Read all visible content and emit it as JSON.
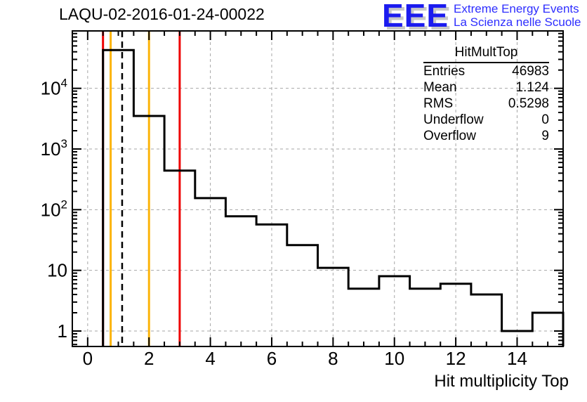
{
  "title": "LAQU-02-2016-01-24-00022",
  "logo": {
    "acronym": "EEE",
    "line1": "Extreme Energy Events",
    "line2": "La Scienza nelle Scuole",
    "color": "#1b1bef",
    "text_color": "#2e2eff",
    "shadow_color": "#c8c8c8"
  },
  "stats_box": {
    "header": "HitMultTop",
    "rows": [
      {
        "label": "Entries",
        "value": "46983"
      },
      {
        "label": "Mean",
        "value": "1.124"
      },
      {
        "label": "RMS",
        "value": "0.5298"
      },
      {
        "label": "Underflow",
        "value": "0"
      },
      {
        "label": "Overflow",
        "value": "9"
      }
    ]
  },
  "chart_data": {
    "type": "bar",
    "subtype": "step-histogram",
    "title": "LAQU-02-2016-01-24-00022",
    "xlabel": "Hit multiplicity Top",
    "ylabel": "",
    "x_range": [
      -0.5,
      15.5
    ],
    "y_range": [
      0.55,
      88000
    ],
    "y_scale": "log",
    "grid": true,
    "bin_width": 1,
    "bin_centers": [
      1,
      2,
      3,
      4,
      5,
      6,
      7,
      8,
      9,
      10,
      11,
      12,
      13,
      14,
      15
    ],
    "values": [
      42676,
      3500,
      440,
      155,
      78,
      57,
      26,
      11,
      5,
      8,
      5,
      6,
      4,
      1,
      2
    ],
    "underflow": 0,
    "overflow": 9,
    "x_ticks": [
      0,
      2,
      4,
      6,
      8,
      10,
      12,
      14
    ],
    "x_minor_step": 0.5,
    "y_ticks": [
      1,
      10,
      100,
      1000,
      10000
    ],
    "hist_color": "#000000",
    "grid_color": "#a6a6a6",
    "marker_lines": [
      {
        "name": "red-threshold-low",
        "x": 0.5,
        "color": "#ee0000",
        "style": "solid"
      },
      {
        "name": "orange-threshold-low",
        "x": 0.75,
        "color": "#fcb40a",
        "style": "solid"
      },
      {
        "name": "mean-line",
        "x": 1.124,
        "color": "#000000",
        "style": "dashed"
      },
      {
        "name": "orange-threshold-high",
        "x": 2,
        "color": "#fcb40a",
        "style": "solid"
      },
      {
        "name": "red-threshold-high",
        "x": 3,
        "color": "#ee0000",
        "style": "solid"
      }
    ]
  }
}
